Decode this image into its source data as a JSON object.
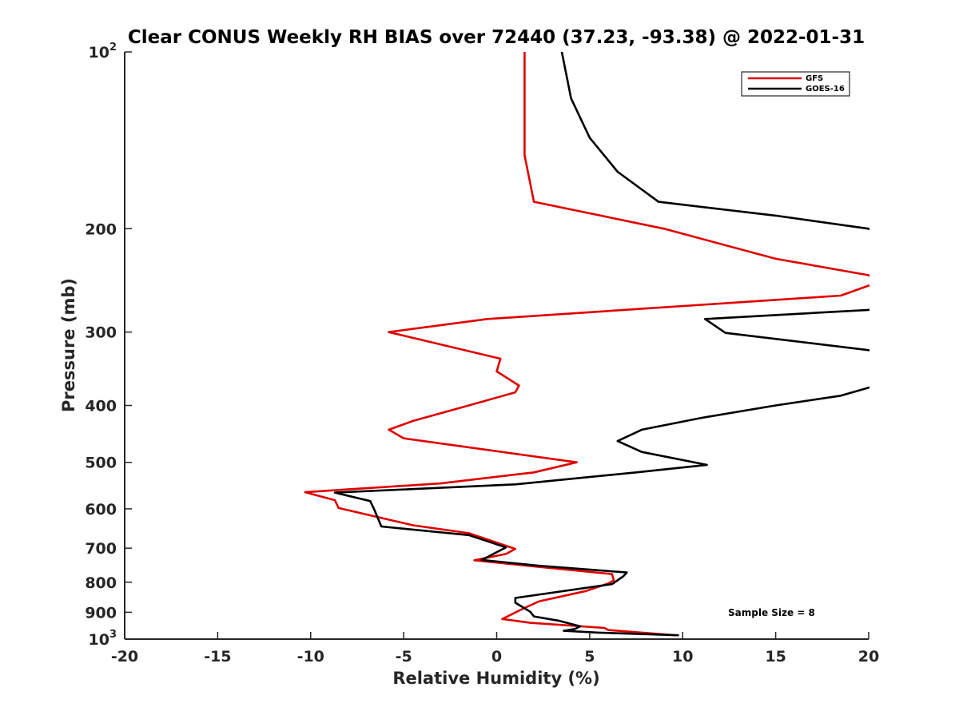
{
  "chart_data": {
    "type": "line",
    "title": "Clear CONUS Weekly RH BIAS over 72440 (37.23, -93.38) @ 2022-01-31",
    "xlabel": "Relative Humidity (%)",
    "ylabel": "Pressure (mb)",
    "xlim": [
      -20,
      20
    ],
    "ylim": [
      100,
      1000
    ],
    "y_scale": "log",
    "y_reversed": true,
    "x_ticks": [
      -20,
      -15,
      -10,
      -5,
      0,
      5,
      10,
      15,
      20
    ],
    "x_tick_labels": [
      "-20",
      "-15",
      "-10",
      "-5",
      "0",
      "5",
      "10",
      "15",
      "20"
    ],
    "y_ticks": [
      {
        "value": 100,
        "base": "10",
        "exp": "2"
      },
      {
        "value": 200,
        "label": "200"
      },
      {
        "value": 300,
        "label": "300"
      },
      {
        "value": 400,
        "label": "400"
      },
      {
        "value": 500,
        "label": "500"
      },
      {
        "value": 600,
        "label": "600"
      },
      {
        "value": 700,
        "label": "700"
      },
      {
        "value": 800,
        "label": "800"
      },
      {
        "value": 900,
        "label": "900"
      },
      {
        "value": 1000,
        "base": "10",
        "exp": "3"
      }
    ],
    "grid": false,
    "legend_position": "top-right",
    "annotation": "Sample Size = 8",
    "series": [
      {
        "name": "GFS",
        "color": "#e00000",
        "points": [
          [
            1.5,
            100
          ],
          [
            1.5,
            150
          ],
          [
            2.0,
            180
          ],
          [
            9.0,
            200
          ],
          [
            15.0,
            225
          ],
          [
            20.0,
            240
          ],
          [
            20.5,
            247
          ],
          [
            20.0,
            250
          ],
          [
            18.5,
            260
          ],
          [
            -0.5,
            285
          ],
          [
            -5.8,
            300
          ],
          [
            0.2,
            333
          ],
          [
            0,
            350
          ],
          [
            1.2,
            370
          ],
          [
            1.0,
            380
          ],
          [
            -1.5,
            400
          ],
          [
            -4.5,
            425
          ],
          [
            -5.8,
            440
          ],
          [
            -5.0,
            455
          ],
          [
            4.3,
            500
          ],
          [
            2.0,
            520
          ],
          [
            -3.0,
            543
          ],
          [
            -8.0,
            556
          ],
          [
            -10.3,
            562
          ],
          [
            -8.7,
            580
          ],
          [
            -8.5,
            598
          ],
          [
            -4.5,
            640
          ],
          [
            -1.5,
            660
          ],
          [
            1.0,
            702
          ],
          [
            0.5,
            716
          ],
          [
            -1.2,
            734
          ],
          [
            2.0,
            752
          ],
          [
            6.2,
            775
          ],
          [
            6.3,
            794
          ],
          [
            6.0,
            804
          ],
          [
            4.8,
            828
          ],
          [
            2.3,
            862
          ],
          [
            1.5,
            885
          ],
          [
            0.3,
            924
          ],
          [
            1.8,
            938
          ],
          [
            5.8,
            957
          ],
          [
            6.0,
            965
          ],
          [
            9.6,
            985
          ]
        ]
      },
      {
        "name": "GOES-16",
        "color": "#000000",
        "points": [
          [
            3.5,
            100
          ],
          [
            4.0,
            120
          ],
          [
            5.0,
            140
          ],
          [
            6.5,
            160
          ],
          [
            8.7,
            180
          ],
          [
            15.0,
            190
          ],
          [
            20.0,
            200
          ],
          [
            20.5,
            205
          ],
          [
            21.0,
            270
          ],
          [
            20.0,
            275
          ],
          [
            11.2,
            285
          ],
          [
            12.3,
            301
          ],
          [
            20.0,
            322
          ],
          [
            21.0,
            330
          ],
          [
            21.0,
            365
          ],
          [
            20.0,
            373
          ],
          [
            18.5,
            385
          ],
          [
            15.0,
            400
          ],
          [
            11.0,
            420
          ],
          [
            7.8,
            440
          ],
          [
            6.5,
            460
          ],
          [
            7.8,
            480
          ],
          [
            11.3,
            505
          ],
          [
            7.5,
            520
          ],
          [
            1.0,
            545
          ],
          [
            -8.7,
            563
          ],
          [
            -6.8,
            582
          ],
          [
            -6.6,
            600
          ],
          [
            -6.2,
            643
          ],
          [
            -1.5,
            665
          ],
          [
            0.5,
            698
          ],
          [
            -0.8,
            733
          ],
          [
            2.3,
            750
          ],
          [
            7.0,
            770
          ],
          [
            6.8,
            782
          ],
          [
            6.2,
            806
          ],
          [
            1.0,
            851
          ],
          [
            1.0,
            867
          ],
          [
            1.8,
            898
          ],
          [
            2.0,
            915
          ],
          [
            3.3,
            930
          ],
          [
            4.5,
            951
          ],
          [
            4.2,
            961
          ],
          [
            3.6,
            968
          ],
          [
            5.5,
            975
          ],
          [
            9.8,
            985
          ]
        ]
      }
    ]
  }
}
